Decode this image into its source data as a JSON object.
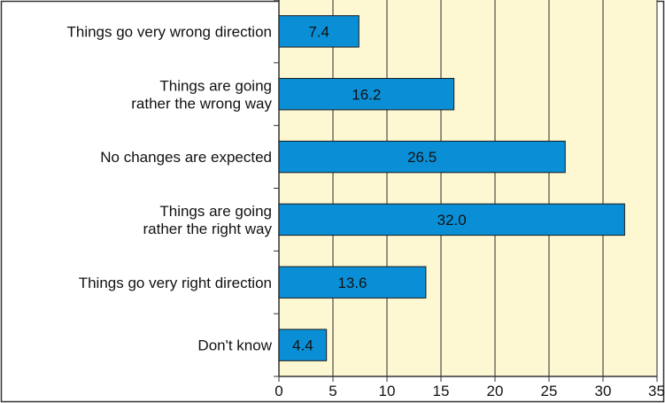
{
  "chart_data": {
    "type": "bar",
    "orientation": "horizontal",
    "categories": [
      [
        "Things go very wrong direction"
      ],
      [
        "Things are going",
        "rather the wrong way"
      ],
      [
        "No changes are expected"
      ],
      [
        "Things are going",
        "rather the right way"
      ],
      [
        "Things go very right direction"
      ],
      [
        "Don't know"
      ]
    ],
    "values": [
      7.4,
      16.2,
      26.5,
      32.0,
      13.6,
      4.4
    ],
    "value_labels": [
      "7.4",
      "16.2",
      "26.5",
      "32.0",
      "13.6",
      "4.4"
    ],
    "xlim": [
      0,
      35
    ],
    "xticks": [
      0,
      5,
      10,
      15,
      20,
      25,
      30,
      35
    ],
    "grid": true,
    "title": "",
    "xlabel": "",
    "ylabel": "",
    "colors": {
      "bar": "#0a8fd6",
      "bar_edge": "#1a1a1a",
      "plot_bg": "#fdf7d2",
      "grid": "#2a2a2a",
      "frame": "#333333"
    }
  }
}
